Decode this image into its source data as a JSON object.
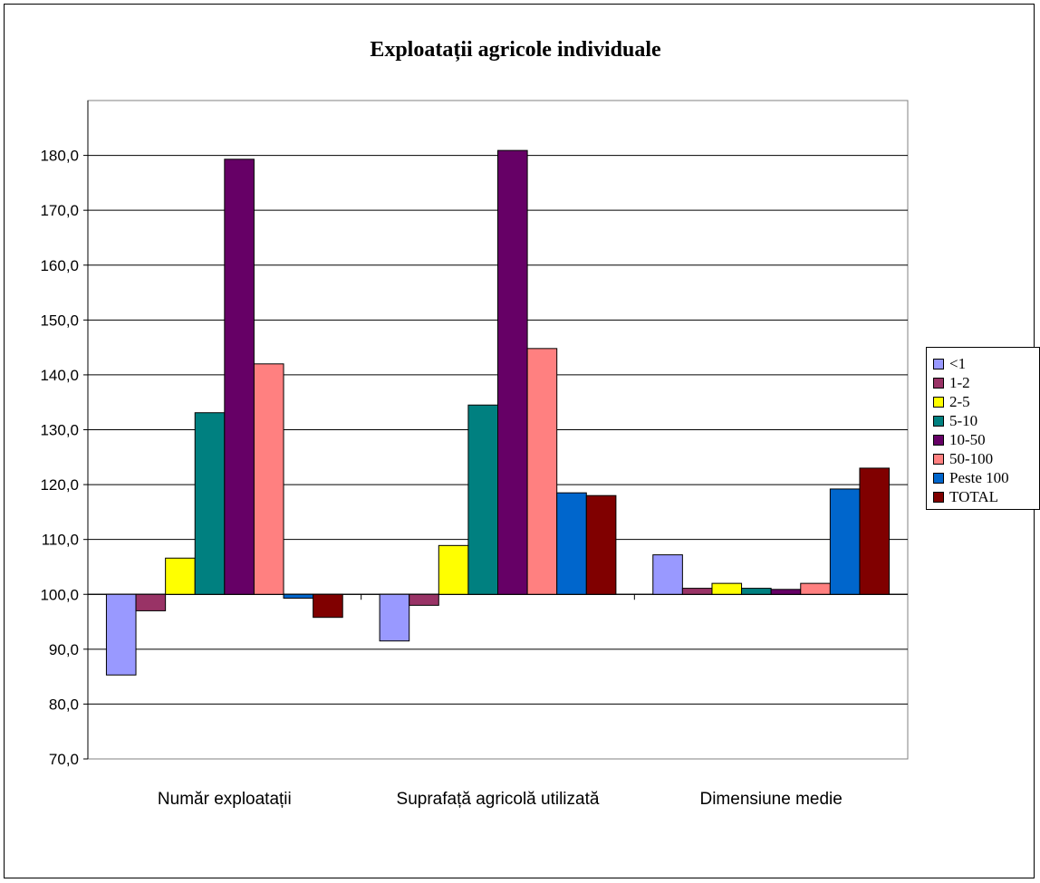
{
  "chart_data": {
    "type": "bar",
    "title": "Exploatații agricole individuale",
    "categories": [
      "Număr exploatații",
      "Suprafață agricolă utilizată",
      "Dimensiune medie"
    ],
    "series": [
      {
        "name": "<1",
        "color": "#9999FF",
        "values": [
          85.3,
          91.5,
          107.2
        ]
      },
      {
        "name": "1-2",
        "color": "#993366",
        "values": [
          97.0,
          98.0,
          101.1
        ]
      },
      {
        "name": "2-5",
        "color": "#FFFF00",
        "values": [
          106.6,
          108.9,
          102.0
        ]
      },
      {
        "name": "5-10",
        "color": "#008080",
        "values": [
          133.1,
          134.5,
          101.1
        ]
      },
      {
        "name": "10-50",
        "color": "#660066",
        "values": [
          179.3,
          180.9,
          100.9
        ]
      },
      {
        "name": "50-100",
        "color": "#FF8080",
        "values": [
          142.0,
          144.8,
          102.0
        ]
      },
      {
        "name": "Peste 100",
        "color": "#0066CC",
        "values": [
          99.3,
          118.5,
          119.2
        ]
      },
      {
        "name": "TOTAL",
        "color": "#800000",
        "values": [
          95.8,
          118.0,
          123.0
        ]
      }
    ],
    "ylim": [
      70,
      190
    ],
    "yticks": [
      "70,0",
      "80,0",
      "90,0",
      "100,0",
      "110,0",
      "120,0",
      "130,0",
      "140,0",
      "150,0",
      "160,0",
      "170,0",
      "180,0"
    ],
    "baseline": 100,
    "grid": true,
    "legend": "right",
    "plot_background": "#ffffff"
  }
}
